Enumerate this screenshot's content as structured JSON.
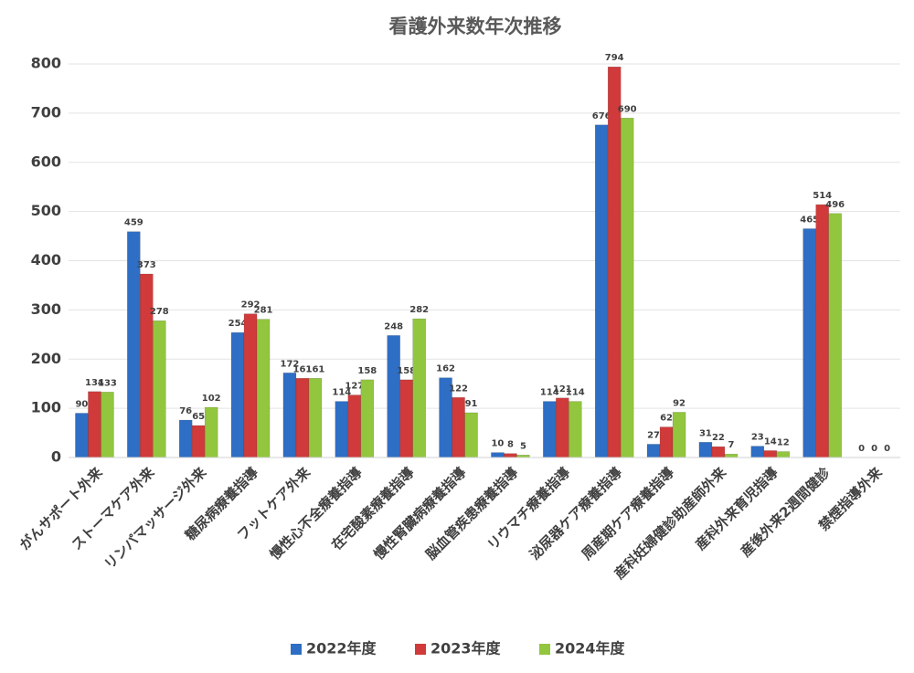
{
  "chart_data": {
    "type": "bar",
    "title": "看護外来数年次推移",
    "categories": [
      "がんサポート外来",
      "ストーマケア外来",
      "リンパマッサージ外来",
      "糖尿病療養指導",
      "フットケア外来",
      "慢性心不全療養指導",
      "在宅酸素療養指導",
      "慢性腎臓病療養指導",
      "脳血管疾患療養指導",
      "リウマチ療養指導",
      "泌尿器ケア療養指導",
      "周産期ケア療養指導",
      "産科妊婦健診助産師外来",
      "産科外来育児指導",
      "産後外来2週間健診",
      "禁煙指導外来"
    ],
    "series": [
      {
        "name": "2022年度",
        "color": "#2e6ec5",
        "values": [
          90,
          459,
          76,
          254,
          172,
          114,
          248,
          162,
          10,
          114,
          676,
          27,
          31,
          23,
          465,
          0
        ]
      },
      {
        "name": "2023年度",
        "color": "#d03a3a",
        "values": [
          134,
          373,
          65,
          292,
          161,
          127,
          158,
          122,
          8,
          121,
          794,
          62,
          22,
          14,
          514,
          0
        ]
      },
      {
        "name": "2024年度",
        "color": "#92c63e",
        "values": [
          133,
          278,
          102,
          281,
          161,
          158,
          282,
          91,
          5,
          114,
          690,
          92,
          7,
          12,
          496,
          0
        ]
      }
    ],
    "ylim": [
      0,
      800
    ],
    "yticks": [
      0,
      100,
      200,
      300,
      400,
      500,
      600,
      700,
      800
    ],
    "grid": true,
    "legend": "bottom"
  }
}
